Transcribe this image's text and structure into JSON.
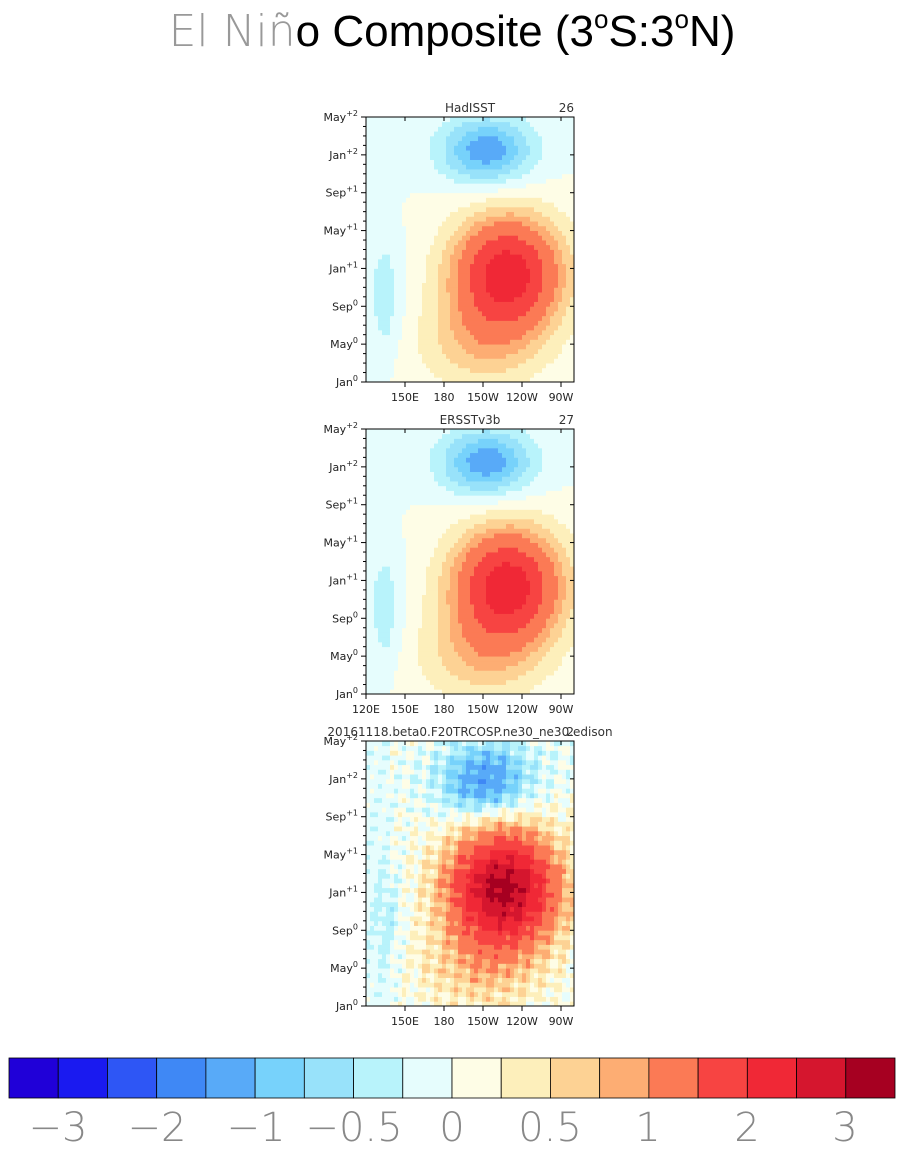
{
  "title": {
    "light_part": "El Niñ",
    "bold_part": "o Composite (3",
    "sup1": "o",
    "mid": "S:3",
    "sup2": "o",
    "end": "N)"
  },
  "colors": [
    "#2000d8",
    "#1a1af0",
    "#2e56f5",
    "#3f88f5",
    "#58aaf8",
    "#77d2fb",
    "#98e2fa",
    "#b8f3fb",
    "#e6fdfd",
    "#fefde6",
    "#fdefbb",
    "#fdd294",
    "#fdad73",
    "#fb7a55",
    "#f74442",
    "#f02836",
    "#d5162e",
    "#a60021"
  ],
  "colorbar_labels": [
    "−3",
    "−2",
    "−1",
    "−0.5",
    "0",
    "0.5",
    "1",
    "2",
    "3"
  ],
  "y_ticks": [
    {
      "label": "Jan",
      "sup": "0"
    },
    {
      "label": "May",
      "sup": "0"
    },
    {
      "label": "Sep",
      "sup": "0"
    },
    {
      "label": "Jan",
      "sup": "+1"
    },
    {
      "label": "May",
      "sup": "+1"
    },
    {
      "label": "Sep",
      "sup": "+1"
    },
    {
      "label": "Jan",
      "sup": "+2"
    },
    {
      "label": "May",
      "sup": "+2"
    }
  ],
  "panels": [
    {
      "name": "HadISST",
      "count": "26",
      "x_ticks": [
        "150E",
        "180",
        "150W",
        "120W",
        "90W"
      ],
      "noise": 0
    },
    {
      "name": "ERSSTv3b",
      "count": "27",
      "x_ticks": [
        "120E",
        "150E",
        "180",
        "150W",
        "120W",
        "90W"
      ],
      "noise": 0
    },
    {
      "name": "20161118.beta0.F20TRCOSP.ne30_ne30.edison",
      "count": "2",
      "x_ticks": [
        "150E",
        "180",
        "150W",
        "120W",
        "90W"
      ],
      "noise": 1
    }
  ],
  "chart_data": {
    "type": "heatmap",
    "title": "El Niño Composite (3°S:3°N)",
    "x_axis": "longitude, 120E to 80W",
    "y_axis": "month, Jan0 to May+2",
    "levels": [
      -3,
      -2.5,
      -2,
      -1.5,
      -1,
      -0.75,
      -0.5,
      -0.25,
      0,
      0.25,
      0.5,
      0.75,
      1,
      1.5,
      2,
      2.5,
      3
    ],
    "panels": [
      {
        "label": "HadISST",
        "n": 26,
        "max_anomaly": 2.0,
        "peak": "Dec0-Jan+1 near 130W",
        "cold_anomaly": "-1 near 160W at Jan+2"
      },
      {
        "label": "ERSSTv3b",
        "n": 27,
        "max_anomaly": 2.0,
        "peak": "Dec0-Jan+1 near 130W",
        "cold_anomaly": "-1 near 140W at Jan+2"
      },
      {
        "label": "20161118.beta0.F20TRCOSP.ne30_ne30.edison",
        "n": 2,
        "max_anomaly": 3.0,
        "peak": "Jan+1 near 135W",
        "cold_anomaly": "-1.5 near 135W at Nov+1"
      }
    ]
  }
}
